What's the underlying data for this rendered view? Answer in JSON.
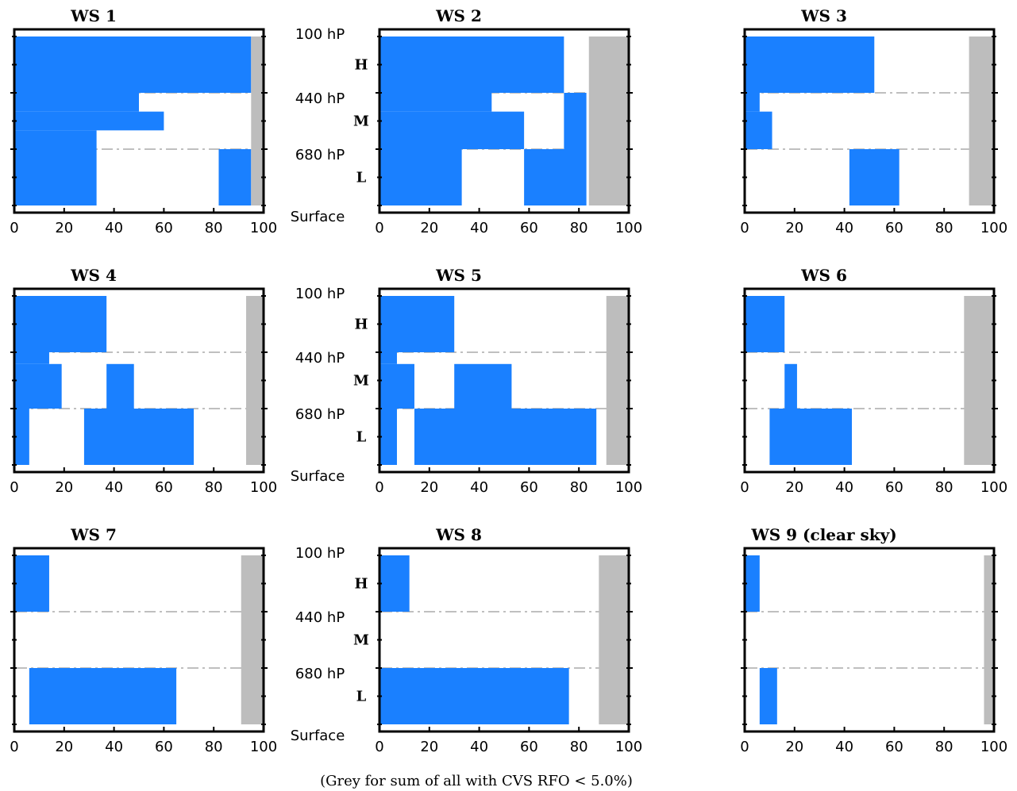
{
  "caption": "(Grey for sum of all with CVS RFO < 5.0%)",
  "pressure_labels": [
    "100 hP",
    "440 hP",
    "680 hP",
    "Surface"
  ],
  "level_labels": [
    "H",
    "M",
    "L"
  ],
  "colors": {
    "blue": "#1a80ff",
    "grey": "#bdbdbd",
    "grid": "#bfbfbf"
  },
  "chart_data": [
    {
      "title": "WS 1",
      "type": "bar",
      "xlim": [
        0,
        100
      ],
      "xticks": [
        0,
        20,
        40,
        60,
        80,
        100
      ],
      "series": [
        {
          "color": "blue",
          "values": [
            [
              0,
              95,
              100,
              440
            ],
            [
              0,
              50,
              440,
              520
            ],
            [
              0,
              60,
              520,
              600
            ],
            [
              0,
              33,
              600,
              680
            ],
            [
              0,
              33,
              680,
              1000
            ],
            [
              82,
              95,
              680,
              1000
            ]
          ]
        },
        {
          "color": "grey",
          "values": [
            [
              95,
              100,
              100,
              1000
            ]
          ]
        }
      ]
    },
    {
      "title": "WS 2",
      "type": "bar",
      "xlim": [
        0,
        100
      ],
      "xticks": [
        0,
        20,
        40,
        60,
        80,
        100
      ],
      "series": [
        {
          "color": "blue",
          "values": [
            [
              0,
              74,
              100,
              440
            ],
            [
              0,
              45,
              440,
              520
            ],
            [
              0,
              58,
              520,
              680
            ],
            [
              74,
              83,
              440,
              680
            ],
            [
              0,
              33,
              680,
              1000
            ],
            [
              58,
              83,
              680,
              1000
            ]
          ]
        },
        {
          "color": "grey",
          "values": [
            [
              84,
              100,
              100,
              1000
            ]
          ]
        }
      ]
    },
    {
      "title": "WS 3",
      "type": "bar",
      "xlim": [
        0,
        100
      ],
      "xticks": [
        0,
        20,
        40,
        60,
        80,
        100
      ],
      "series": [
        {
          "color": "blue",
          "values": [
            [
              0,
              52,
              100,
              440
            ],
            [
              0,
              6,
              440,
              520
            ],
            [
              0,
              11,
              520,
              680
            ],
            [
              42,
              62,
              680,
              1000
            ]
          ]
        },
        {
          "color": "grey",
          "values": [
            [
              90,
              100,
              100,
              1000
            ]
          ]
        }
      ]
    },
    {
      "title": "WS 4",
      "type": "bar",
      "xlim": [
        0,
        100
      ],
      "xticks": [
        0,
        20,
        40,
        60,
        80,
        100
      ],
      "series": [
        {
          "color": "blue",
          "values": [
            [
              0,
              37,
              100,
              440
            ],
            [
              0,
              14,
              440,
              490
            ],
            [
              0,
              19,
              490,
              680
            ],
            [
              0,
              6,
              680,
              1000
            ],
            [
              37,
              48,
              490,
              680
            ],
            [
              28,
              72,
              680,
              1000
            ]
          ]
        },
        {
          "color": "grey",
          "values": [
            [
              93,
              100,
              100,
              1000
            ]
          ]
        }
      ]
    },
    {
      "title": "WS 5",
      "type": "bar",
      "xlim": [
        0,
        100
      ],
      "xticks": [
        0,
        20,
        40,
        60,
        80,
        100
      ],
      "series": [
        {
          "color": "blue",
          "values": [
            [
              0,
              30,
              100,
              440
            ],
            [
              0,
              7,
              440,
              490
            ],
            [
              0,
              14,
              490,
              680
            ],
            [
              0,
              7,
              680,
              1000
            ],
            [
              30,
              53,
              490,
              680
            ],
            [
              14,
              87,
              680,
              1000
            ]
          ]
        },
        {
          "color": "grey",
          "values": [
            [
              91,
              100,
              100,
              1000
            ]
          ]
        }
      ]
    },
    {
      "title": "WS 6",
      "type": "bar",
      "xlim": [
        0,
        100
      ],
      "xticks": [
        0,
        20,
        40,
        60,
        80,
        100
      ],
      "series": [
        {
          "color": "blue",
          "values": [
            [
              0,
              16,
              100,
              440
            ],
            [
              16,
              21,
              490,
              680
            ],
            [
              10,
              43,
              680,
              1000
            ]
          ]
        },
        {
          "color": "grey",
          "values": [
            [
              88,
              100,
              100,
              1000
            ]
          ]
        }
      ]
    },
    {
      "title": "WS 7",
      "type": "bar",
      "xlim": [
        0,
        100
      ],
      "xticks": [
        0,
        20,
        40,
        60,
        80,
        100
      ],
      "series": [
        {
          "color": "blue",
          "values": [
            [
              0,
              14,
              100,
              440
            ],
            [
              6,
              65,
              680,
              1000
            ]
          ]
        },
        {
          "color": "grey",
          "values": [
            [
              91,
              100,
              100,
              1000
            ]
          ]
        }
      ]
    },
    {
      "title": "WS 8",
      "type": "bar",
      "xlim": [
        0,
        100
      ],
      "xticks": [
        0,
        20,
        40,
        60,
        80,
        100
      ],
      "series": [
        {
          "color": "blue",
          "values": [
            [
              0,
              12,
              100,
              440
            ],
            [
              0,
              76,
              680,
              1000
            ]
          ]
        },
        {
          "color": "grey",
          "values": [
            [
              88,
              100,
              100,
              1000
            ]
          ]
        }
      ]
    },
    {
      "title": "WS 9  (clear sky)",
      "type": "bar",
      "xlim": [
        0,
        100
      ],
      "xticks": [
        0,
        20,
        40,
        60,
        80,
        100
      ],
      "series": [
        {
          "color": "blue",
          "values": [
            [
              0,
              6,
              100,
              440
            ],
            [
              6,
              13,
              680,
              1000
            ]
          ]
        },
        {
          "color": "grey",
          "values": [
            [
              96,
              100,
              100,
              1000
            ]
          ]
        }
      ]
    }
  ]
}
